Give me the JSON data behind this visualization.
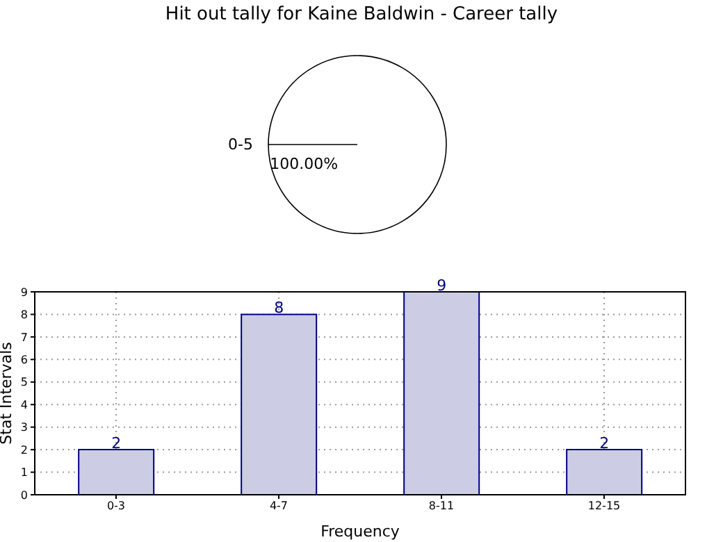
{
  "chart_data": [
    {
      "type": "pie",
      "title": "Hit out tally for Kaine Baldwin - Career tally",
      "categories": [
        "0-5"
      ],
      "values": [
        100
      ],
      "colors": [
        "#ffffff"
      ],
      "value_labels": [
        "100.00%"
      ]
    },
    {
      "type": "bar",
      "categories": [
        "0-3",
        "4-7",
        "8-11",
        "12-15"
      ],
      "values": [
        2,
        8,
        9,
        2
      ],
      "color": "#cccce5",
      "xlabel": "Frequency",
      "ylabel": "Stat Intervals",
      "ylim": [
        0,
        9
      ],
      "yticks": [
        0,
        1,
        2,
        3,
        4,
        5,
        6,
        7,
        8,
        9
      ],
      "grid": true,
      "data_labels": true
    }
  ]
}
